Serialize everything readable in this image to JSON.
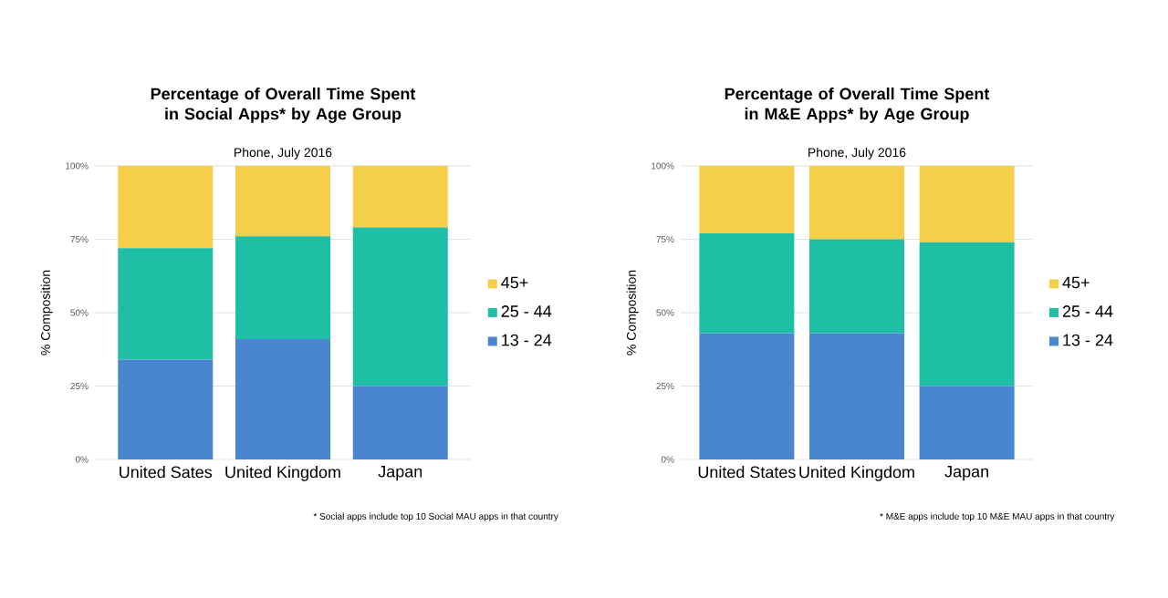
{
  "chart_data": [
    {
      "type": "bar",
      "stacked": true,
      "title": "Percentage of Overall Time Spent in Social Apps* by Age Group",
      "subtitle": "Phone, July 2016",
      "ylabel": "% Composition",
      "categories": [
        "United Sates",
        "United Kingdom",
        "Japan"
      ],
      "series": [
        {
          "name": "13 - 24",
          "color": "#4a86d0",
          "values": [
            34,
            41,
            25
          ]
        },
        {
          "name": "25 - 44",
          "color": "#1fbfa5",
          "values": [
            38,
            35,
            54
          ]
        },
        {
          "name": "45+",
          "color": "#f5cf4a",
          "values": [
            28,
            24,
            21
          ]
        }
      ],
      "ylim": [
        0,
        100
      ],
      "yticks": [
        {
          "value": 0,
          "label": "0%"
        },
        {
          "value": 25,
          "label": "25%"
        },
        {
          "value": 50,
          "label": "50%"
        },
        {
          "value": 75,
          "label": "75%"
        },
        {
          "value": 100,
          "label": "100%"
        }
      ],
      "grid": "y",
      "legend": "right",
      "annotations": [
        "* Social apps include top 10 Social MAU apps in that country"
      ]
    },
    {
      "type": "bar",
      "stacked": true,
      "title": "Percentage of Overall Time Spent in M&E Apps* by Age Group",
      "subtitle": "Phone, July 2016",
      "ylabel": "% Composition",
      "categories": [
        "United States",
        "United Kingdom",
        "Japan"
      ],
      "series": [
        {
          "name": "13 - 24",
          "color": "#4a86d0",
          "values": [
            43,
            43,
            25
          ]
        },
        {
          "name": "25 - 44",
          "color": "#1fbfa5",
          "values": [
            34,
            32,
            49
          ]
        },
        {
          "name": "45+",
          "color": "#f5cf4a",
          "values": [
            23,
            25,
            26
          ]
        }
      ],
      "ylim": [
        0,
        100
      ],
      "yticks": [
        {
          "value": 0,
          "label": "0%"
        },
        {
          "value": 25,
          "label": "25%"
        },
        {
          "value": 50,
          "label": "50%"
        },
        {
          "value": 75,
          "label": "75%"
        },
        {
          "value": 100,
          "label": "100%"
        }
      ],
      "grid": "y",
      "legend": "right",
      "annotations": [
        "* M&E apps include top 10 M&E MAU apps in that country"
      ]
    }
  ]
}
